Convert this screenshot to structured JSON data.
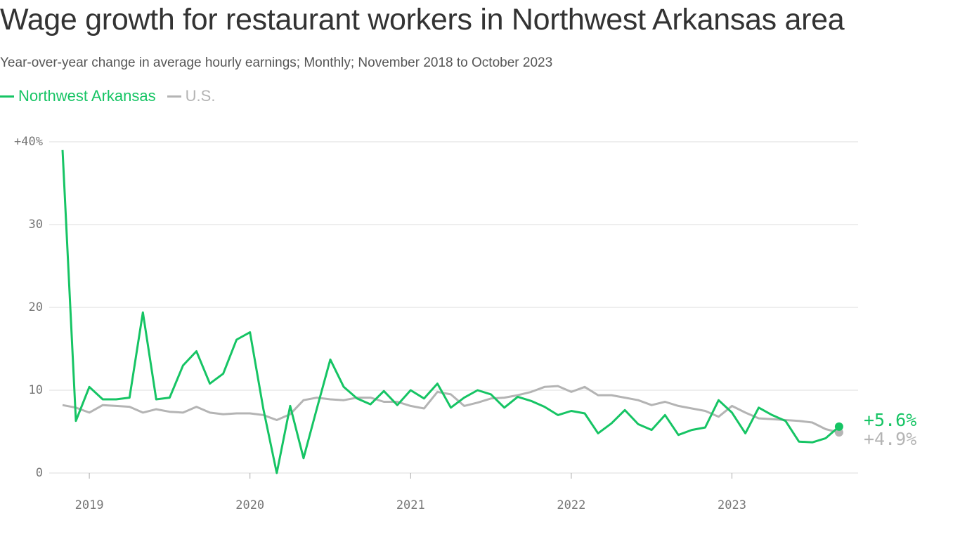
{
  "chart_data": {
    "type": "line",
    "title": "Wage growth for restaurant workers in Northwest Arkansas area",
    "subtitle": "Year-over-year change in average hourly earnings; Monthly; November 2018 to October 2023",
    "xlabel": "",
    "ylabel": "",
    "ylim": [
      0,
      40
    ],
    "y_ticks": [
      {
        "value": 40,
        "label": "+40%"
      },
      {
        "value": 30,
        "label": "30"
      },
      {
        "value": 20,
        "label": "20"
      },
      {
        "value": 10,
        "label": "10"
      },
      {
        "value": 0,
        "label": "0"
      }
    ],
    "x_ticks": [
      "2019",
      "2020",
      "2021",
      "2022",
      "2023"
    ],
    "x_start": "2018-11",
    "grid": true,
    "legend_position": "top-left",
    "series": [
      {
        "name": "Northwest Arkansas",
        "color": "#16c464",
        "end_label": "+5.6%",
        "values": [
          39.0,
          6.3,
          10.4,
          8.9,
          8.9,
          9.1,
          19.4,
          8.9,
          9.1,
          13.0,
          14.7,
          10.8,
          12.0,
          16.1,
          17.0,
          7.7,
          0.0,
          8.1,
          1.8,
          7.8,
          13.7,
          10.4,
          9.0,
          8.3,
          9.9,
          8.2,
          10.0,
          9.0,
          10.8,
          7.9,
          9.1,
          10.0,
          9.5,
          7.9,
          9.2,
          8.7,
          8.0,
          7.0,
          7.5,
          7.2,
          4.8,
          6.0,
          7.6,
          5.9,
          5.2,
          7.0,
          4.6,
          5.2,
          5.5,
          8.8,
          7.3,
          4.8,
          7.9,
          7.0,
          6.3,
          3.8,
          3.7,
          4.2,
          5.6
        ]
      },
      {
        "name": "U.S.",
        "color": "#b4b4b4",
        "end_label": "+4.9%",
        "values": [
          8.2,
          7.9,
          7.3,
          8.2,
          8.1,
          8.0,
          7.3,
          7.7,
          7.4,
          7.3,
          8.0,
          7.3,
          7.1,
          7.2,
          7.2,
          7.0,
          6.4,
          7.1,
          8.8,
          9.1,
          8.9,
          8.8,
          9.1,
          9.1,
          8.6,
          8.6,
          8.1,
          7.8,
          9.8,
          9.5,
          8.1,
          8.5,
          9.0,
          9.1,
          9.4,
          9.8,
          10.4,
          10.5,
          9.8,
          10.4,
          9.4,
          9.4,
          9.1,
          8.8,
          8.2,
          8.6,
          8.1,
          7.8,
          7.5,
          6.8,
          8.1,
          7.3,
          6.6,
          6.5,
          6.4,
          6.3,
          6.1,
          5.3,
          4.9
        ]
      }
    ]
  }
}
